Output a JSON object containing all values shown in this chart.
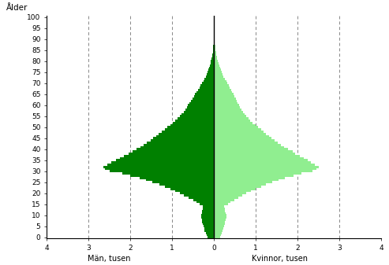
{
  "title": "Ålder",
  "xlabel_left": "Män, tusen",
  "xlabel_right": "Kvinnor, tusen",
  "xlim": 4,
  "male_color": "#008000",
  "female_color": "#90EE90",
  "background_color": "#ffffff",
  "grid_color": "#888888",
  "ages": [
    0,
    1,
    2,
    3,
    4,
    5,
    6,
    7,
    8,
    9,
    10,
    11,
    12,
    13,
    14,
    15,
    16,
    17,
    18,
    19,
    20,
    21,
    22,
    23,
    24,
    25,
    26,
    27,
    28,
    29,
    30,
    31,
    32,
    33,
    34,
    35,
    36,
    37,
    38,
    39,
    40,
    41,
    42,
    43,
    44,
    45,
    46,
    47,
    48,
    49,
    50,
    51,
    52,
    53,
    54,
    55,
    56,
    57,
    58,
    59,
    60,
    61,
    62,
    63,
    64,
    65,
    66,
    67,
    68,
    69,
    70,
    71,
    72,
    73,
    74,
    75,
    76,
    77,
    78,
    79,
    80,
    81,
    82,
    83,
    84,
    85,
    86,
    87,
    88,
    89,
    90,
    91,
    92,
    93,
    94,
    95,
    96,
    97,
    98,
    99,
    100
  ],
  "male": [
    0.15,
    0.18,
    0.2,
    0.22,
    0.23,
    0.25,
    0.27,
    0.28,
    0.29,
    0.3,
    0.3,
    0.29,
    0.28,
    0.27,
    0.26,
    0.35,
    0.42,
    0.5,
    0.6,
    0.72,
    0.82,
    0.92,
    1.05,
    1.18,
    1.3,
    1.48,
    1.62,
    1.78,
    2.0,
    2.2,
    2.5,
    2.6,
    2.65,
    2.55,
    2.45,
    2.35,
    2.25,
    2.15,
    2.05,
    1.95,
    1.85,
    1.75,
    1.68,
    1.6,
    1.52,
    1.45,
    1.38,
    1.32,
    1.25,
    1.18,
    1.12,
    1.05,
    0.98,
    0.92,
    0.88,
    0.82,
    0.78,
    0.72,
    0.68,
    0.65,
    0.62,
    0.58,
    0.55,
    0.52,
    0.48,
    0.45,
    0.42,
    0.38,
    0.35,
    0.32,
    0.28,
    0.25,
    0.22,
    0.2,
    0.18,
    0.15,
    0.13,
    0.11,
    0.09,
    0.08,
    0.07,
    0.06,
    0.05,
    0.04,
    0.03,
    0.03,
    0.02,
    0.02,
    0.01,
    0.01,
    0.01,
    0.01,
    0.0,
    0.0,
    0.0,
    0.0,
    0.0,
    0.0,
    0.0,
    0.0,
    0.0
  ],
  "female": [
    0.14,
    0.17,
    0.19,
    0.21,
    0.22,
    0.24,
    0.26,
    0.27,
    0.28,
    0.29,
    0.29,
    0.28,
    0.27,
    0.26,
    0.25,
    0.33,
    0.4,
    0.48,
    0.58,
    0.68,
    0.78,
    0.88,
    1.0,
    1.12,
    1.24,
    1.4,
    1.55,
    1.7,
    1.9,
    2.1,
    2.35,
    2.45,
    2.5,
    2.42,
    2.32,
    2.25,
    2.15,
    2.05,
    1.95,
    1.88,
    1.78,
    1.68,
    1.6,
    1.52,
    1.45,
    1.38,
    1.32,
    1.25,
    1.18,
    1.12,
    1.06,
    0.99,
    0.93,
    0.87,
    0.83,
    0.78,
    0.74,
    0.69,
    0.65,
    0.62,
    0.6,
    0.57,
    0.55,
    0.52,
    0.49,
    0.47,
    0.44,
    0.41,
    0.38,
    0.35,
    0.32,
    0.29,
    0.26,
    0.23,
    0.21,
    0.19,
    0.17,
    0.15,
    0.13,
    0.11,
    0.1,
    0.08,
    0.07,
    0.06,
    0.05,
    0.04,
    0.04,
    0.03,
    0.02,
    0.02,
    0.01,
    0.01,
    0.01,
    0.0,
    0.0,
    0.0,
    0.0,
    0.0,
    0.0,
    0.0,
    0.0
  ]
}
